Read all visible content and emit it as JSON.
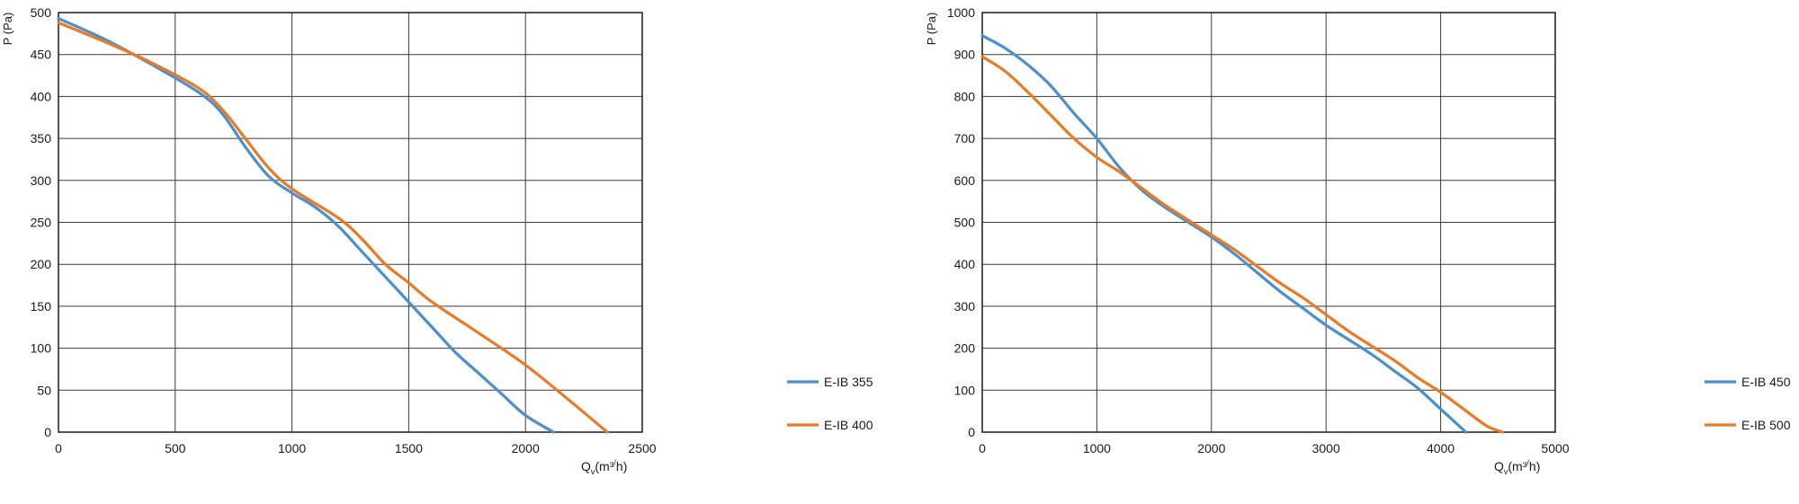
{
  "chart_data": [
    {
      "type": "line",
      "xlabel": "Qv(m³/h)",
      "ylabel": "P (Pa)",
      "xlim": [
        0,
        2500
      ],
      "ylim": [
        0,
        500
      ],
      "x_ticks": [
        "0",
        "500",
        "1000",
        "1500",
        "2000",
        "2500"
      ],
      "y_ticks": [
        "0",
        "50",
        "100",
        "150",
        "200",
        "250",
        "300",
        "350",
        "400",
        "450",
        "500"
      ],
      "grid": true,
      "legend_position": "bottom-right",
      "series": [
        {
          "name": "E-IB 355",
          "color": "#4a90d0",
          "points": [
            [
              0,
              493
            ],
            [
              200,
              468
            ],
            [
              400,
              438
            ],
            [
              600,
              405
            ],
            [
              700,
              380
            ],
            [
              800,
              340
            ],
            [
              900,
              305
            ],
            [
              1000,
              285
            ],
            [
              1100,
              268
            ],
            [
              1200,
              245
            ],
            [
              1300,
              215
            ],
            [
              1400,
              185
            ],
            [
              1500,
              155
            ],
            [
              1600,
              125
            ],
            [
              1700,
              95
            ],
            [
              1800,
              70
            ],
            [
              1900,
              45
            ],
            [
              2000,
              20
            ],
            [
              2120,
              0
            ]
          ]
        },
        {
          "name": "E-IB 400",
          "color": "#ec7a24",
          "points": [
            [
              0,
              488
            ],
            [
              200,
              465
            ],
            [
              400,
              440
            ],
            [
              600,
              410
            ],
            [
              700,
              385
            ],
            [
              800,
              350
            ],
            [
              900,
              315
            ],
            [
              1000,
              290
            ],
            [
              1200,
              255
            ],
            [
              1300,
              230
            ],
            [
              1400,
              200
            ],
            [
              1500,
              178
            ],
            [
              1600,
              155
            ],
            [
              1800,
              118
            ],
            [
              2000,
              80
            ],
            [
              2200,
              35
            ],
            [
              2350,
              0
            ]
          ]
        }
      ]
    },
    {
      "type": "line",
      "xlabel": "Qv(m³/h)",
      "ylabel": "P (Pa)",
      "xlim": [
        0,
        5000
      ],
      "ylim": [
        0,
        1000
      ],
      "x_ticks": [
        "0",
        "1000",
        "2000",
        "3000",
        "4000",
        "5000"
      ],
      "y_ticks": [
        "0",
        "100",
        "200",
        "300",
        "400",
        "500",
        "600",
        "700",
        "800",
        "900",
        "1000"
      ],
      "grid": true,
      "legend_position": "bottom-right",
      "series": [
        {
          "name": "E-IB 450",
          "color": "#4a90d0",
          "points": [
            [
              0,
              945
            ],
            [
              200,
              915
            ],
            [
              400,
              875
            ],
            [
              600,
              825
            ],
            [
              800,
              760
            ],
            [
              1000,
              700
            ],
            [
              1200,
              630
            ],
            [
              1400,
              575
            ],
            [
              1600,
              535
            ],
            [
              1800,
              500
            ],
            [
              2000,
              465
            ],
            [
              2200,
              425
            ],
            [
              2400,
              380
            ],
            [
              2600,
              335
            ],
            [
              2800,
              295
            ],
            [
              3000,
              255
            ],
            [
              3200,
              220
            ],
            [
              3400,
              185
            ],
            [
              3600,
              145
            ],
            [
              3800,
              105
            ],
            [
              4000,
              55
            ],
            [
              4220,
              0
            ]
          ]
        },
        {
          "name": "E-IB 500",
          "color": "#ec7a24",
          "points": [
            [
              0,
              895
            ],
            [
              200,
              860
            ],
            [
              400,
              810
            ],
            [
              600,
              755
            ],
            [
              800,
              700
            ],
            [
              1000,
              655
            ],
            [
              1200,
              620
            ],
            [
              1400,
              580
            ],
            [
              1600,
              540
            ],
            [
              1800,
              505
            ],
            [
              2000,
              470
            ],
            [
              2200,
              435
            ],
            [
              2400,
              395
            ],
            [
              2600,
              355
            ],
            [
              2800,
              320
            ],
            [
              3000,
              280
            ],
            [
              3200,
              240
            ],
            [
              3400,
              205
            ],
            [
              3600,
              170
            ],
            [
              3800,
              130
            ],
            [
              4000,
              95
            ],
            [
              4200,
              55
            ],
            [
              4400,
              15
            ],
            [
              4540,
              0
            ]
          ]
        }
      ]
    }
  ]
}
